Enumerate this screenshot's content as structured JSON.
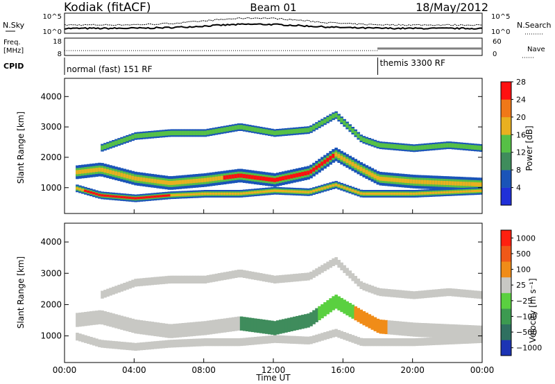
{
  "header": {
    "title_left": "Kodiak (fitACF)",
    "title_center": "Beam 01",
    "title_right": "18/May/2012"
  },
  "noise_panel": {
    "left_label": "N.Sky",
    "right_label": "N.Search",
    "top_tick": "10^5",
    "bottom_tick": "10^0"
  },
  "freq_panel": {
    "left_label_1": "Freq.",
    "left_label_2": "[MHz]",
    "left_top_tick": "18",
    "left_bottom_tick": "8",
    "right_label": "Nave",
    "right_top_tick": "60",
    "right_bottom_tick": "0"
  },
  "cpid": {
    "label": "CPID",
    "segment_1": "normal (fast) 151 RF",
    "segment_2": "themis 3300 RF",
    "switch_time_h": 18.0
  },
  "x_axis": {
    "label": "Time UT",
    "ticks": [
      "00:00",
      "04:00",
      "08:00",
      "12:00",
      "16:00",
      "20:00",
      "00:00"
    ],
    "range_h": [
      0,
      24
    ]
  },
  "chart_data": [
    {
      "type": "heatmap",
      "quantity": "power",
      "ylabel": "Slant Range [km]",
      "yticks": [
        "1000",
        "2000",
        "3000",
        "4000"
      ],
      "ylim": [
        150,
        4600
      ],
      "colorbar_label": "Power [dB]",
      "colorbar_ticks": [
        "4",
        "8",
        "12",
        "16",
        "20",
        "24",
        "28"
      ],
      "colorbar_colors": [
        "#2030d8",
        "#1a54b8",
        "#3f8c5c",
        "#56c046",
        "#e8b020",
        "#f07818",
        "#ff1010"
      ],
      "bands": [
        {
          "name": "main-echo",
          "range_km": [
            [
              0.5,
              1500
            ],
            [
              2,
              1600
            ],
            [
              4,
              1300
            ],
            [
              6,
              1150
            ],
            [
              8,
              1250
            ],
            [
              10,
              1400
            ],
            [
              12,
              1250
            ],
            [
              14,
              1500
            ],
            [
              15.5,
              2100
            ],
            [
              17,
              1600
            ],
            [
              18,
              1300
            ],
            [
              20,
              1200
            ],
            [
              22,
              1150
            ],
            [
              24,
              1100
            ]
          ],
          "width_km": 450
        },
        {
          "name": "low-echo",
          "range_km": [
            [
              0.5,
              1000
            ],
            [
              2,
              750
            ],
            [
              4,
              650
            ],
            [
              6,
              750
            ],
            [
              8,
              800
            ],
            [
              10,
              800
            ],
            [
              12,
              900
            ],
            [
              14,
              850
            ],
            [
              15.5,
              1100
            ],
            [
              17,
              800
            ],
            [
              18,
              800
            ],
            [
              20,
              800
            ],
            [
              22,
              850
            ],
            [
              24,
              900
            ]
          ],
          "width_km": 250
        },
        {
          "name": "upper-echo",
          "range_km": [
            [
              2,
              2300
            ],
            [
              4,
              2700
            ],
            [
              6,
              2800
            ],
            [
              8,
              2800
            ],
            [
              10,
              3000
            ],
            [
              12,
              2800
            ],
            [
              14,
              2900
            ],
            [
              15.5,
              3400
            ],
            [
              17,
              2600
            ],
            [
              18,
              2400
            ],
            [
              20,
              2300
            ],
            [
              22,
              2400
            ],
            [
              24,
              2300
            ]
          ],
          "width_km": 250
        }
      ]
    },
    {
      "type": "heatmap",
      "quantity": "velocity",
      "ylabel": "Slant Range [km]",
      "yticks": [
        "1000",
        "2000",
        "3000",
        "4000"
      ],
      "ylim": [
        150,
        4600
      ],
      "colorbar_label": "Velocity [m s⁻¹]",
      "colorbar_ticks": [
        "1000",
        "500",
        "100",
        "25",
        "−25",
        "−100",
        "−500",
        "−1000"
      ],
      "colorbar_colors": [
        "#1c34b4",
        "#2f7060",
        "#3c9a50",
        "#5ad040",
        "#c8c8c4",
        "#f08c18",
        "#f05818",
        "#ff2010"
      ],
      "segments": [
        {
          "t": [
            0,
            10
          ],
          "color": "#c8c8c4"
        },
        {
          "t": [
            10,
            14.5
          ],
          "color": "#3f8c5c"
        },
        {
          "t": [
            14.5,
            16.5
          ],
          "color": "#5ad040"
        },
        {
          "t": [
            16.5,
            18.5
          ],
          "color": "#f08c18"
        },
        {
          "t": [
            18.5,
            24
          ],
          "color": "#c8c8c4"
        }
      ]
    }
  ]
}
